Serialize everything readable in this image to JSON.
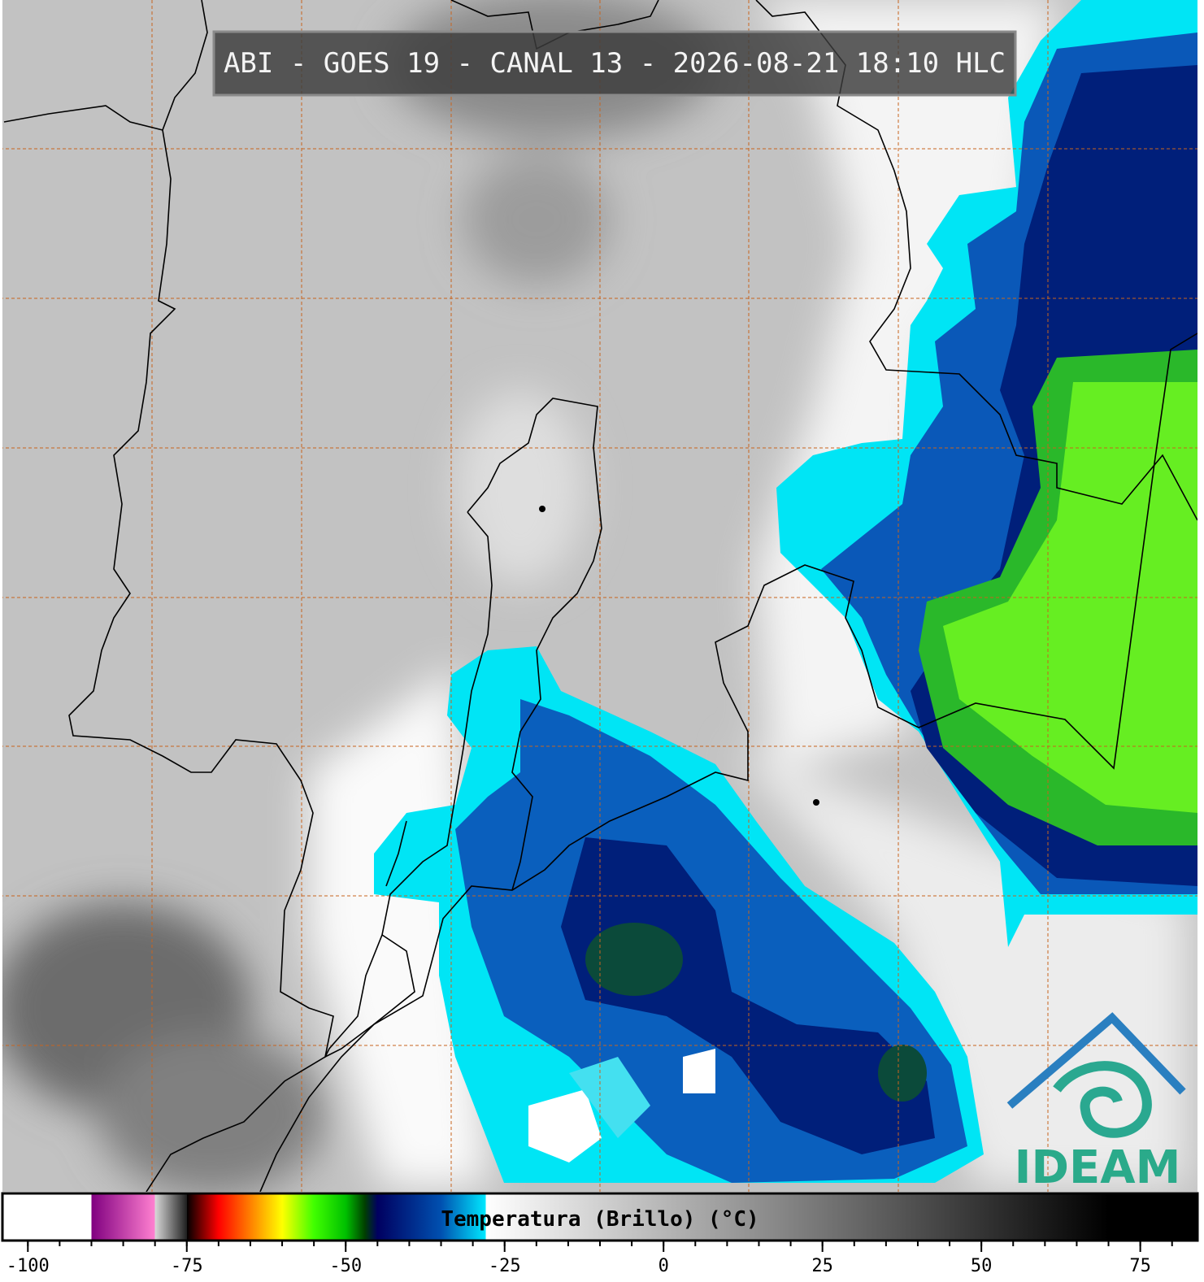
{
  "title": "ABI - GOES 19 - CANAL 13 - 2026-08-21 18:10 HLC",
  "logo": "IDEAM",
  "colorbar": {
    "label": "Temperatura (Brillo) (°C)",
    "lim": [
      -104,
      84
    ],
    "ticks": [
      -100,
      -75,
      -50,
      -25,
      0,
      25,
      50,
      75
    ],
    "minor_tick_step": 5,
    "colorscale": [
      {
        "value": -104,
        "color": "#ffffff"
      },
      {
        "value": -90,
        "color": "#ffffff"
      },
      {
        "value": -90,
        "color": "#800080"
      },
      {
        "value": -80,
        "color": "#ff80d0"
      },
      {
        "value": -80,
        "color": "#d8d8d8"
      },
      {
        "value": -75,
        "color": "#202020"
      },
      {
        "value": -75,
        "color": "#000000"
      },
      {
        "value": -70,
        "color": "#ff0000"
      },
      {
        "value": -65,
        "color": "#ff8000"
      },
      {
        "value": -60,
        "color": "#ffff00"
      },
      {
        "value": -55,
        "color": "#40ff00"
      },
      {
        "value": -50,
        "color": "#00c000"
      },
      {
        "value": -47,
        "color": "#004000"
      },
      {
        "value": -45,
        "color": "#000060"
      },
      {
        "value": -35,
        "color": "#0050b0"
      },
      {
        "value": -28,
        "color": "#00e8ff"
      },
      {
        "value": -28,
        "color": "#ffffff"
      },
      {
        "value": 70,
        "color": "#000000"
      },
      {
        "value": 84,
        "color": "#000000"
      }
    ]
  }
}
